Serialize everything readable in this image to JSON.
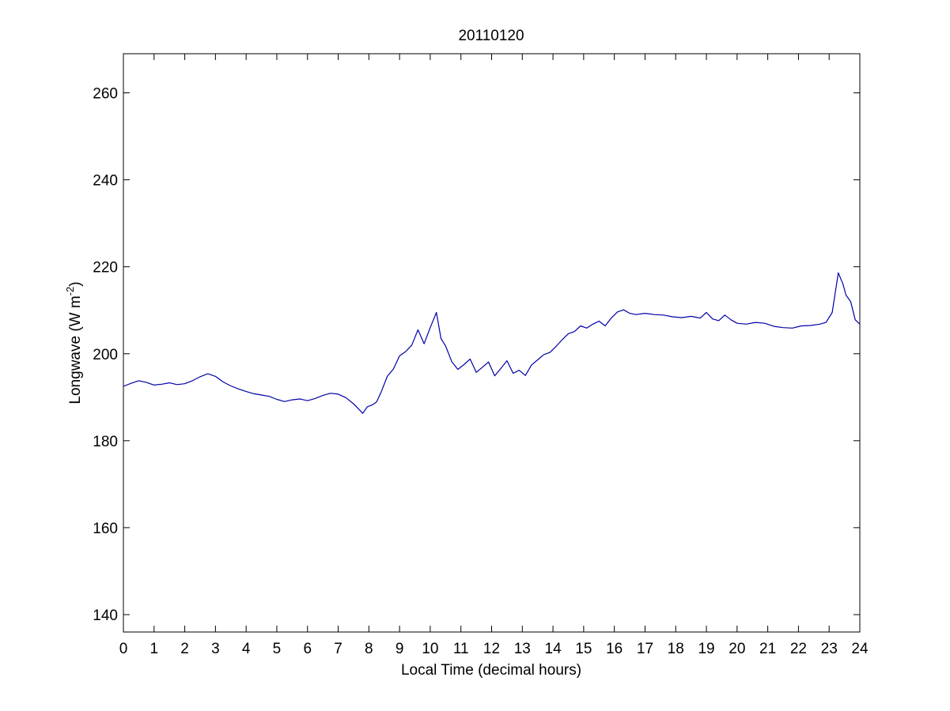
{
  "chart_data": {
    "type": "line",
    "title": "20110120",
    "xlabel": "Local Time (decimal hours)",
    "ylabel_main": "Longwave (W m",
    "ylabel_sup": "-2",
    "ylabel_close": ")",
    "xlim": [
      0,
      24
    ],
    "ylim": [
      136,
      269
    ],
    "xticks": [
      0,
      1,
      2,
      3,
      4,
      5,
      6,
      7,
      8,
      9,
      10,
      11,
      12,
      13,
      14,
      15,
      16,
      17,
      18,
      19,
      20,
      21,
      22,
      23,
      24
    ],
    "yticks": [
      140,
      160,
      180,
      200,
      220,
      240,
      260
    ],
    "grid": false,
    "series": [
      {
        "color": "#0000aa",
        "x": [
          0,
          0.25,
          0.5,
          0.75,
          1.0,
          1.25,
          1.5,
          1.75,
          2.0,
          2.25,
          2.5,
          2.75,
          3.0,
          3.25,
          3.5,
          3.75,
          4.0,
          4.25,
          4.5,
          4.75,
          5.0,
          5.25,
          5.5,
          5.75,
          6.0,
          6.25,
          6.5,
          6.75,
          7.0,
          7.25,
          7.5,
          7.65,
          7.8,
          7.95,
          8.1,
          8.25,
          8.4,
          8.6,
          8.8,
          9.0,
          9.2,
          9.4,
          9.6,
          9.8,
          10.0,
          10.2,
          10.35,
          10.5,
          10.7,
          10.9,
          11.1,
          11.3,
          11.5,
          11.7,
          11.9,
          12.1,
          12.3,
          12.5,
          12.7,
          12.9,
          13.1,
          13.3,
          13.5,
          13.7,
          13.9,
          14.1,
          14.3,
          14.5,
          14.7,
          14.9,
          15.1,
          15.3,
          15.5,
          15.7,
          15.9,
          16.1,
          16.3,
          16.5,
          16.7,
          17.0,
          17.3,
          17.6,
          17.9,
          18.2,
          18.5,
          18.8,
          19.0,
          19.2,
          19.4,
          19.6,
          19.8,
          20.0,
          20.3,
          20.6,
          20.9,
          21.2,
          21.5,
          21.8,
          22.1,
          22.4,
          22.7,
          22.9,
          23.1,
          23.3,
          23.45,
          23.55,
          23.7,
          23.85,
          24.0
        ],
        "y": [
          192.5,
          193.2,
          193.8,
          193.4,
          192.8,
          193.0,
          193.3,
          192.9,
          193.1,
          193.8,
          194.7,
          195.4,
          194.8,
          193.5,
          192.6,
          191.9,
          191.3,
          190.8,
          190.5,
          190.2,
          189.5,
          189.0,
          189.4,
          189.6,
          189.2,
          189.7,
          190.4,
          190.9,
          190.7,
          189.9,
          188.5,
          187.4,
          186.3,
          187.8,
          188.2,
          188.9,
          191.2,
          194.8,
          196.5,
          199.5,
          200.5,
          202.0,
          205.5,
          202.3,
          206.0,
          209.5,
          203.5,
          201.8,
          198.2,
          196.4,
          197.5,
          198.8,
          195.7,
          196.9,
          198.1,
          194.9,
          196.6,
          198.4,
          195.5,
          196.2,
          195.0,
          197.4,
          198.6,
          199.8,
          200.3,
          201.7,
          203.2,
          204.6,
          205.1,
          206.4,
          205.9,
          206.8,
          207.5,
          206.4,
          208.2,
          209.6,
          210.1,
          209.3,
          209.0,
          209.3,
          209.0,
          208.9,
          208.5,
          208.3,
          208.6,
          208.2,
          209.5,
          208.0,
          207.6,
          208.9,
          207.8,
          207.0,
          206.8,
          207.2,
          207.0,
          206.3,
          206.0,
          205.9,
          206.4,
          206.5,
          206.8,
          207.2,
          209.5,
          218.6,
          216.0,
          213.5,
          212.0,
          207.8,
          206.8
        ]
      }
    ]
  }
}
